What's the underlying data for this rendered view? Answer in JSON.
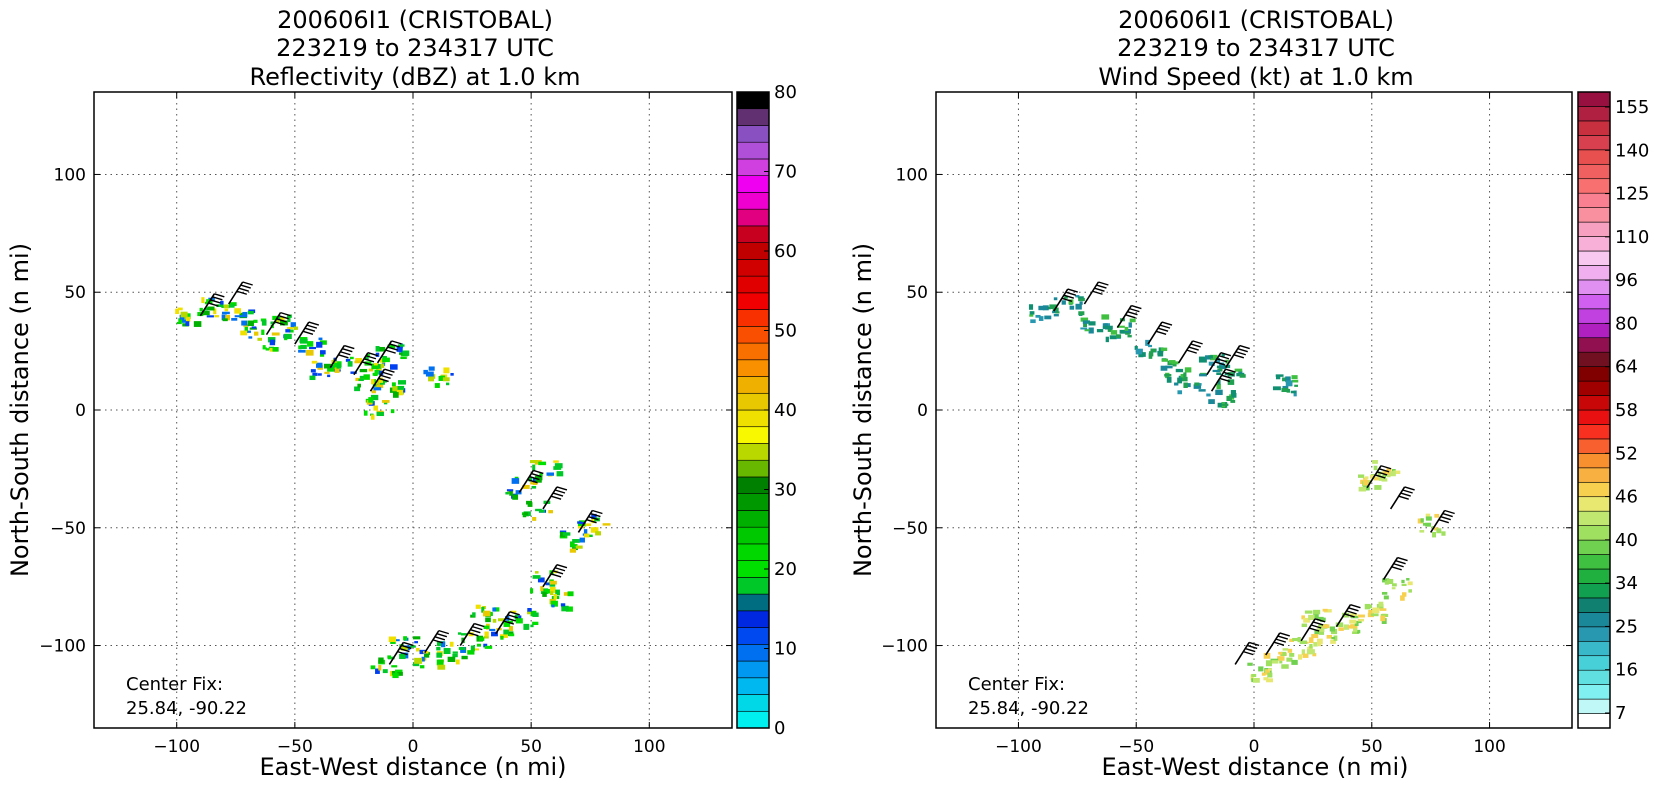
{
  "chart_data": [
    {
      "type": "heatmap",
      "title_lines": [
        "200606I1 (CRISTOBAL)",
        "223219 to 234317 UTC",
        "Reflectivity (dBZ) at 1.0 km"
      ],
      "xlabel": "East-West distance (n mi)",
      "ylabel": "North-South distance (n mi)",
      "xlim": [
        -135,
        135
      ],
      "ylim": [
        -135,
        135
      ],
      "xticks": [
        -100,
        -50,
        0,
        50,
        100
      ],
      "yticks": [
        -100,
        -50,
        0,
        50,
        100
      ],
      "xtick_labels": [
        "−100",
        "−50",
        "0",
        "50",
        "100"
      ],
      "ytick_labels": [
        "−100",
        "−50",
        "0",
        "50",
        "100"
      ],
      "grid": true,
      "annotation_lines": [
        "Center Fix:",
        "25.84, -90.22"
      ],
      "colorbar": {
        "min": 0,
        "max": 80,
        "ticks": [
          0,
          10,
          20,
          30,
          40,
          50,
          60,
          70,
          80
        ],
        "tick_labels": [
          "0",
          "10",
          "20",
          "30",
          "40",
          "50",
          "60",
          "70",
          "80"
        ],
        "colors": [
          "#00f0f0",
          "#00d8e8",
          "#00b8f0",
          "#0098f0",
          "#0070f0",
          "#0048f0",
          "#0028e0",
          "#006e80",
          "#00c828",
          "#00e000",
          "#00d800",
          "#00c800",
          "#00b000",
          "#009800",
          "#008000",
          "#68b800",
          "#b8d800",
          "#f8f800",
          "#f0e000",
          "#e8c800",
          "#f0b000",
          "#f89000",
          "#f87000",
          "#f85000",
          "#f83000",
          "#f00000",
          "#e00000",
          "#d00000",
          "#c00000",
          "#c80020",
          "#e00080",
          "#f000d0",
          "#f000f0",
          "#d040e0",
          "#b050d8",
          "#8850c0",
          "#603070",
          "#000000"
        ]
      },
      "points": [
        {
          "x": -95,
          "y": 40
        },
        {
          "x": -85,
          "y": 44
        },
        {
          "x": -75,
          "y": 42
        },
        {
          "x": -68,
          "y": 35
        },
        {
          "x": -60,
          "y": 30
        },
        {
          "x": -55,
          "y": 38
        },
        {
          "x": -45,
          "y": 28
        },
        {
          "x": -38,
          "y": 18
        },
        {
          "x": -28,
          "y": 20
        },
        {
          "x": -20,
          "y": 12
        },
        {
          "x": -15,
          "y": 20
        },
        {
          "x": -12,
          "y": 10
        },
        {
          "x": -10,
          "y": 25
        },
        {
          "x": -15,
          "y": 2
        },
        {
          "x": 10,
          "y": 15
        },
        {
          "x": 45,
          "y": -32
        },
        {
          "x": 55,
          "y": -25
        },
        {
          "x": 52,
          "y": -42
        },
        {
          "x": 75,
          "y": -48
        },
        {
          "x": 68,
          "y": -55
        },
        {
          "x": 55,
          "y": -72
        },
        {
          "x": 60,
          "y": -80
        },
        {
          "x": 45,
          "y": -88
        },
        {
          "x": 35,
          "y": -92
        },
        {
          "x": 25,
          "y": -98
        },
        {
          "x": 15,
          "y": -102
        },
        {
          "x": 5,
          "y": -105
        },
        {
          "x": -5,
          "y": -100
        },
        {
          "x": -12,
          "y": -108
        },
        {
          "x": 30,
          "y": -85
        }
      ],
      "wind_barbs": [
        {
          "x": -90,
          "y": 40
        },
        {
          "x": -78,
          "y": 45
        },
        {
          "x": -62,
          "y": 32
        },
        {
          "x": -50,
          "y": 28
        },
        {
          "x": -35,
          "y": 18
        },
        {
          "x": -25,
          "y": 15
        },
        {
          "x": -15,
          "y": 20
        },
        {
          "x": -18,
          "y": 8
        },
        {
          "x": 45,
          "y": -35
        },
        {
          "x": 55,
          "y": -42
        },
        {
          "x": 70,
          "y": -52
        },
        {
          "x": 55,
          "y": -75
        },
        {
          "x": 35,
          "y": -95
        },
        {
          "x": 20,
          "y": -100
        },
        {
          "x": 5,
          "y": -103
        },
        {
          "x": -10,
          "y": -108
        }
      ]
    },
    {
      "type": "heatmap",
      "title_lines": [
        "200606I1 (CRISTOBAL)",
        "223219 to 234317 UTC",
        "Wind Speed (kt) at 1.0 km"
      ],
      "xlabel": "East-West distance (n mi)",
      "ylabel": "North-South distance (n mi)",
      "xlim": [
        -135,
        135
      ],
      "ylim": [
        -135,
        135
      ],
      "xticks": [
        -100,
        -50,
        0,
        50,
        100
      ],
      "yticks": [
        -100,
        -50,
        0,
        50,
        100
      ],
      "xtick_labels": [
        "−100",
        "−50",
        "0",
        "50",
        "100"
      ],
      "ytick_labels": [
        "−100",
        "−50",
        "0",
        "50",
        "100"
      ],
      "grid": true,
      "annotation_lines": [
        "Center Fix:",
        "25.84, -90.22"
      ],
      "colorbar": {
        "ticks_top_to_bottom": [
          "155",
          "140",
          "125",
          "110",
          "96",
          "80",
          "64",
          "58",
          "52",
          "46",
          "40",
          "34",
          "25",
          "16",
          "7"
        ],
        "colors": [
          "#ffffff",
          "#c0f8f8",
          "#80f0f0",
          "#60e0e0",
          "#48d0d8",
          "#38b8c8",
          "#2898b0",
          "#1a8898",
          "#108070",
          "#10a050",
          "#20b040",
          "#40c040",
          "#70d050",
          "#a0e060",
          "#c0e870",
          "#e8e870",
          "#f8d050",
          "#f8b040",
          "#f89030",
          "#f86030",
          "#f83020",
          "#e81010",
          "#c80808",
          "#a00000",
          "#800000",
          "#701020",
          "#901050",
          "#b020c0",
          "#c040e0",
          "#d060f0",
          "#e090f0",
          "#f0b0f0",
          "#f8c8f0",
          "#f8b0d8",
          "#f8a0c0",
          "#f890a0",
          "#f88090",
          "#f87070",
          "#f06060",
          "#e85050",
          "#d84050",
          "#c83040",
          "#b02040",
          "#981040"
        ]
      },
      "points": [
        {
          "x": -90,
          "y": 42
        },
        {
          "x": -80,
          "y": 45
        },
        {
          "x": -68,
          "y": 38
        },
        {
          "x": -58,
          "y": 35
        },
        {
          "x": -45,
          "y": 28
        },
        {
          "x": -35,
          "y": 18
        },
        {
          "x": -28,
          "y": 12
        },
        {
          "x": -18,
          "y": 20
        },
        {
          "x": -12,
          "y": 15
        },
        {
          "x": -15,
          "y": 5
        },
        {
          "x": 12,
          "y": 12
        },
        {
          "x": 50,
          "y": -30
        },
        {
          "x": 55,
          "y": -25
        },
        {
          "x": 75,
          "y": -48
        },
        {
          "x": 60,
          "y": -75
        },
        {
          "x": 50,
          "y": -85
        },
        {
          "x": 40,
          "y": -90
        },
        {
          "x": 30,
          "y": -95
        },
        {
          "x": 20,
          "y": -100
        },
        {
          "x": 10,
          "y": -105
        },
        {
          "x": 0,
          "y": -110
        },
        {
          "x": 25,
          "y": -88
        }
      ],
      "wind_barbs": [
        {
          "x": -85,
          "y": 42
        },
        {
          "x": -72,
          "y": 45
        },
        {
          "x": -58,
          "y": 35
        },
        {
          "x": -45,
          "y": 28
        },
        {
          "x": -32,
          "y": 20
        },
        {
          "x": -20,
          "y": 15
        },
        {
          "x": -12,
          "y": 18
        },
        {
          "x": -18,
          "y": 8
        },
        {
          "x": 48,
          "y": -33
        },
        {
          "x": 58,
          "y": -42
        },
        {
          "x": 75,
          "y": -52
        },
        {
          "x": 55,
          "y": -72
        },
        {
          "x": 35,
          "y": -92
        },
        {
          "x": 20,
          "y": -98
        },
        {
          "x": 5,
          "y": -104
        },
        {
          "x": -8,
          "y": -108
        }
      ]
    }
  ]
}
